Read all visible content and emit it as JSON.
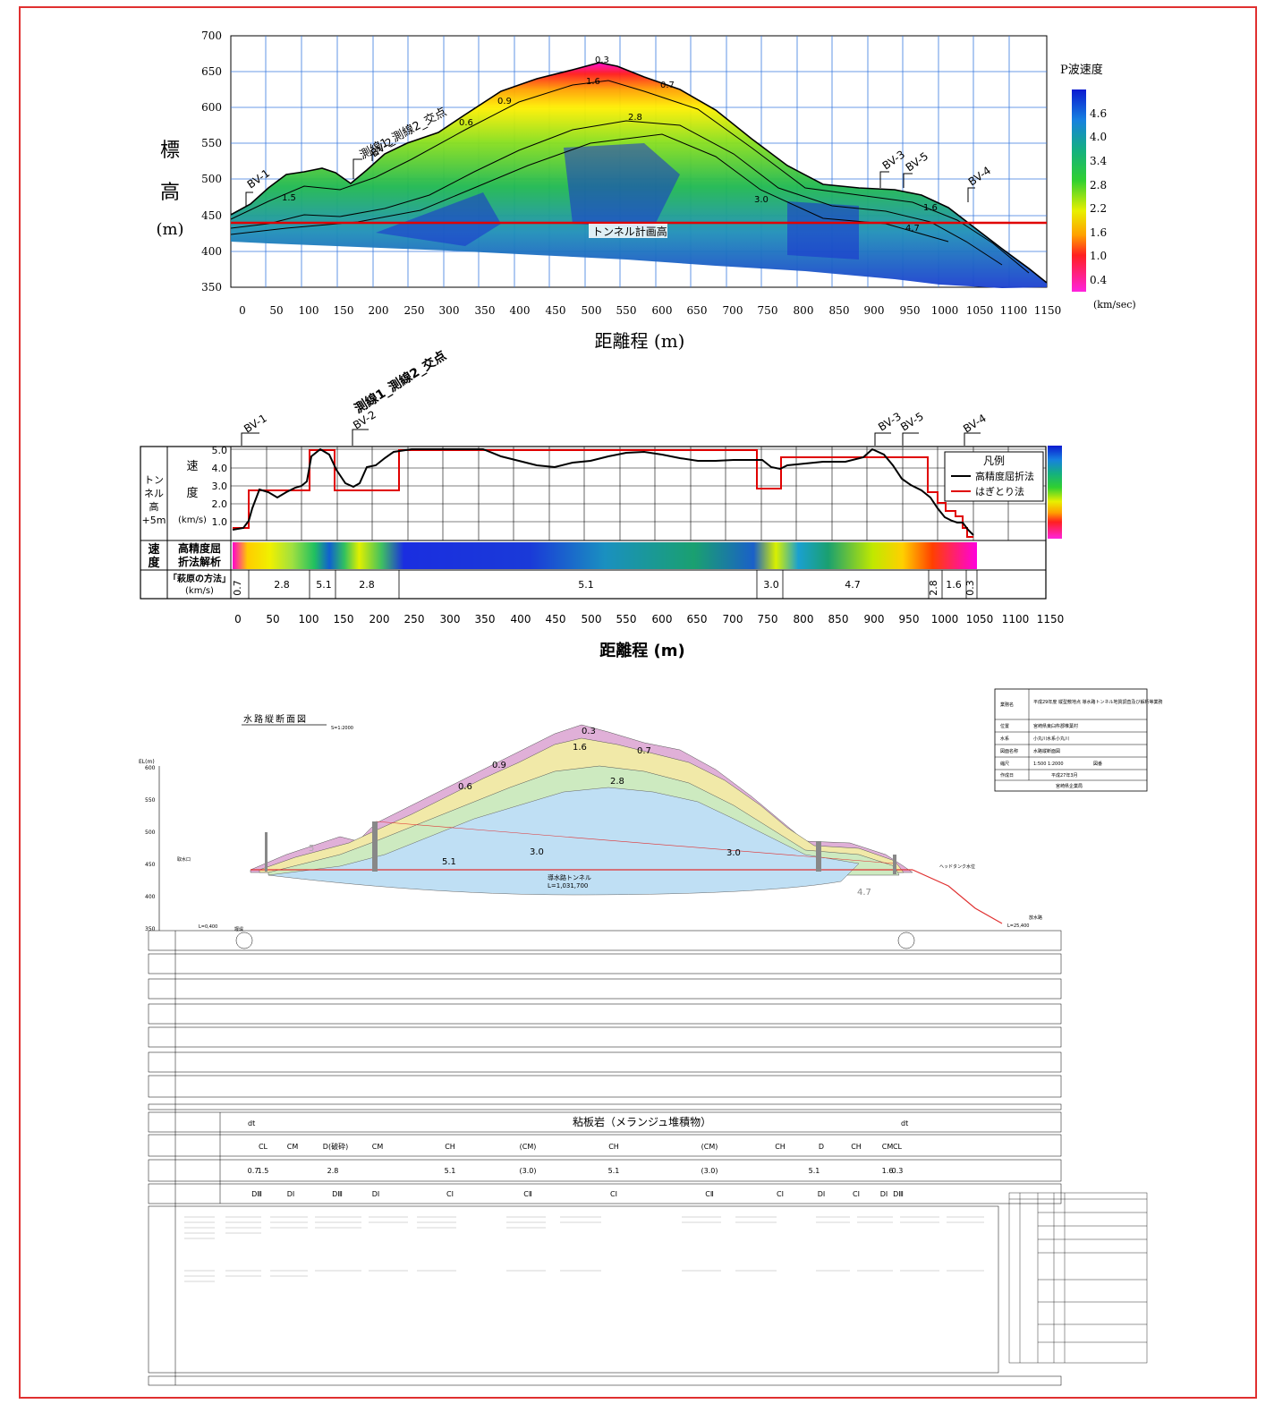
{
  "top_section": {
    "y_label_chars": [
      "標",
      "高",
      "(m)"
    ],
    "x_axis_title": "距離程 (m)",
    "intersection_label": "測線1_測線2_交点",
    "tunnel_label": "トンネル計画高",
    "legend_title": "P波速度",
    "legend_unit": "(km/sec)",
    "legend_ticks": [
      "4.6",
      "4.0",
      "3.4",
      "2.8",
      "2.2",
      "1.6",
      "1.0",
      "0.4"
    ],
    "contour_labels": [
      "0.3",
      "1.6",
      "0.7",
      "2.8",
      "1.5",
      "3.0",
      "4.7",
      "1.6",
      "0.9",
      "0.6"
    ],
    "boreholes": [
      "BV-1",
      "BV-2",
      "BV-3",
      "BV-5",
      "BV-4"
    ]
  },
  "middle_section": {
    "intersection_label": "測線1_測線2_交点",
    "boreholes": [
      "BV-1",
      "BV-2",
      "BV-3",
      "BV-5",
      "BV-4"
    ],
    "row_label_tunnel": [
      "トン",
      "ネル",
      "高",
      "+5m"
    ],
    "row_label_speed": [
      "速",
      "度"
    ],
    "row_label_velocity": [
      "速",
      "度"
    ],
    "hp_label": [
      "高精度屈",
      "折法解析"
    ],
    "hagi_label": [
      "「萩原の方法」",
      "(km/s)"
    ],
    "unit_label": "(km/s)",
    "legend_title": "凡例",
    "legend_black": "高精度屈折法",
    "legend_red": "はぎとり法",
    "x_axis_title": "距離程 (m)",
    "hagi_cells": [
      "0.7",
      "2.8",
      "5.1",
      "2.8",
      "5.1",
      "3.0",
      "4.7",
      "2.8",
      "1.6",
      "0.3"
    ]
  },
  "bottom_section": {
    "title": "水路縦断面図",
    "scale": "S=1:2000",
    "el_label": "EL(m)",
    "tunnel_name": "導水路トンネル",
    "tunnel_length": "L=1,031,700",
    "vel_labels": [
      "0.3",
      "1.6",
      "0.9",
      "0.7",
      "2.8",
      "0.6",
      "5.1",
      "3.0",
      "3.0",
      "4.7",
      "5"
    ],
    "geology": "粘板岩（メランジュ堆積物）",
    "left_notes": [
      "取水口",
      "L=0,400",
      "堰堤",
      "ヘッドタンク水位",
      "放水路",
      "L=25,400"
    ],
    "info_table": [
      [
        "業務名",
        "平成29年度 縦型敷地点 導水路トンネル地質調査及び解析等業務"
      ],
      [
        "位置",
        "宮崎県東臼杵郡椎葉村"
      ],
      [
        "水系",
        "小丸川水系小丸川"
      ],
      [
        "図面名称",
        "水路縦断面図"
      ],
      [
        "縮尺",
        "1:500 1:2000",
        "図番"
      ],
      [
        "作成日",
        "平成27年3月"
      ],
      [
        "",
        "宮崎県企業局"
      ]
    ],
    "cm_row": [
      "CL",
      "CM",
      "D(破砕)",
      "CM",
      "CH",
      "(CM)",
      "CH",
      "(CM)",
      "CH",
      "D",
      "CH",
      "CM",
      "CL"
    ],
    "dt_mark": "dt",
    "vel_row": [
      "0.7",
      "1.5",
      "2.8",
      "5.1",
      "(3.0)",
      "5.1",
      "(3.0)",
      "5.1",
      "1.6",
      "0.3"
    ],
    "rock_row": [
      "DⅢ",
      "DⅠ",
      "DⅢ",
      "DⅠ",
      "CⅠ",
      "CⅡ",
      "CⅠ",
      "CⅡ",
      "CⅠ",
      "DⅠ",
      "CⅠ",
      "DⅠ",
      "DⅢ"
    ]
  }
}
